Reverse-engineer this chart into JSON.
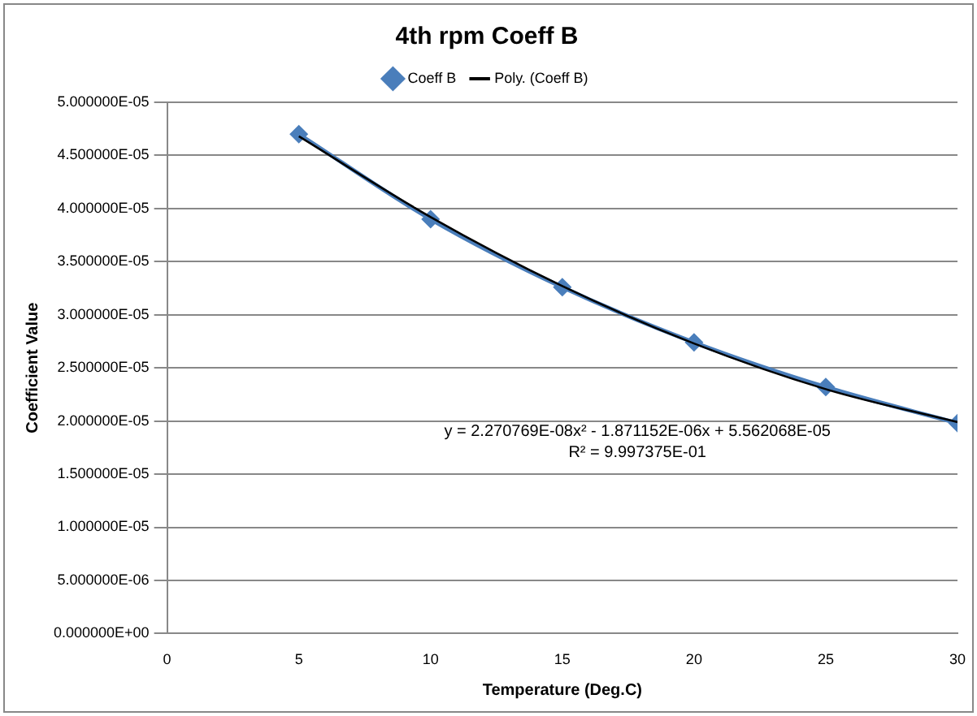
{
  "chart_data": {
    "type": "line",
    "title": "4th rpm Coeff B",
    "xlabel": "Temperature (Deg.C)",
    "ylabel": "Coefficient Value",
    "x": [
      5,
      10,
      15,
      20,
      25,
      30
    ],
    "series": [
      {
        "name": "Coeff B",
        "color": "#4a7ebb",
        "values": [
          4.7e-05,
          3.9e-05,
          3.26e-05,
          2.74e-05,
          2.32e-05,
          1.98e-05
        ],
        "marker": "diamond"
      },
      {
        "name": "Poly. (Coeff B)",
        "color": "#000000",
        "x": [
          5,
          10,
          15,
          20,
          25,
          30
        ],
        "values": [
          4.68e-05,
          3.92e-05,
          3.27e-05,
          2.73e-05,
          2.3e-05,
          1.99e-05
        ],
        "marker": "none"
      }
    ],
    "xlim": [
      0,
      30
    ],
    "xticks": [
      0,
      5,
      10,
      15,
      20,
      25,
      30
    ],
    "ylim": [
      0,
      5e-05
    ],
    "yticks": [
      {
        "value": 0,
        "label": "0.000000E+00"
      },
      {
        "value": 5e-06,
        "label": "5.000000E-06"
      },
      {
        "value": 1e-05,
        "label": "1.000000E-05"
      },
      {
        "value": 1.5e-05,
        "label": "1.500000E-05"
      },
      {
        "value": 2e-05,
        "label": "2.000000E-05"
      },
      {
        "value": 2.5e-05,
        "label": "2.500000E-05"
      },
      {
        "value": 3e-05,
        "label": "3.000000E-05"
      },
      {
        "value": 3.5e-05,
        "label": "3.500000E-05"
      },
      {
        "value": 4e-05,
        "label": "4.000000E-05"
      },
      {
        "value": 4.5e-05,
        "label": "4.500000E-05"
      },
      {
        "value": 5e-05,
        "label": "5.000000E-05"
      }
    ],
    "grid": "y",
    "legend": "top",
    "line_style": "solid",
    "annotations": [
      "y = 2.270769E-08x² - 1.871152E-06x + 5.562068E-05",
      "R² = 9.997375E-01"
    ]
  }
}
